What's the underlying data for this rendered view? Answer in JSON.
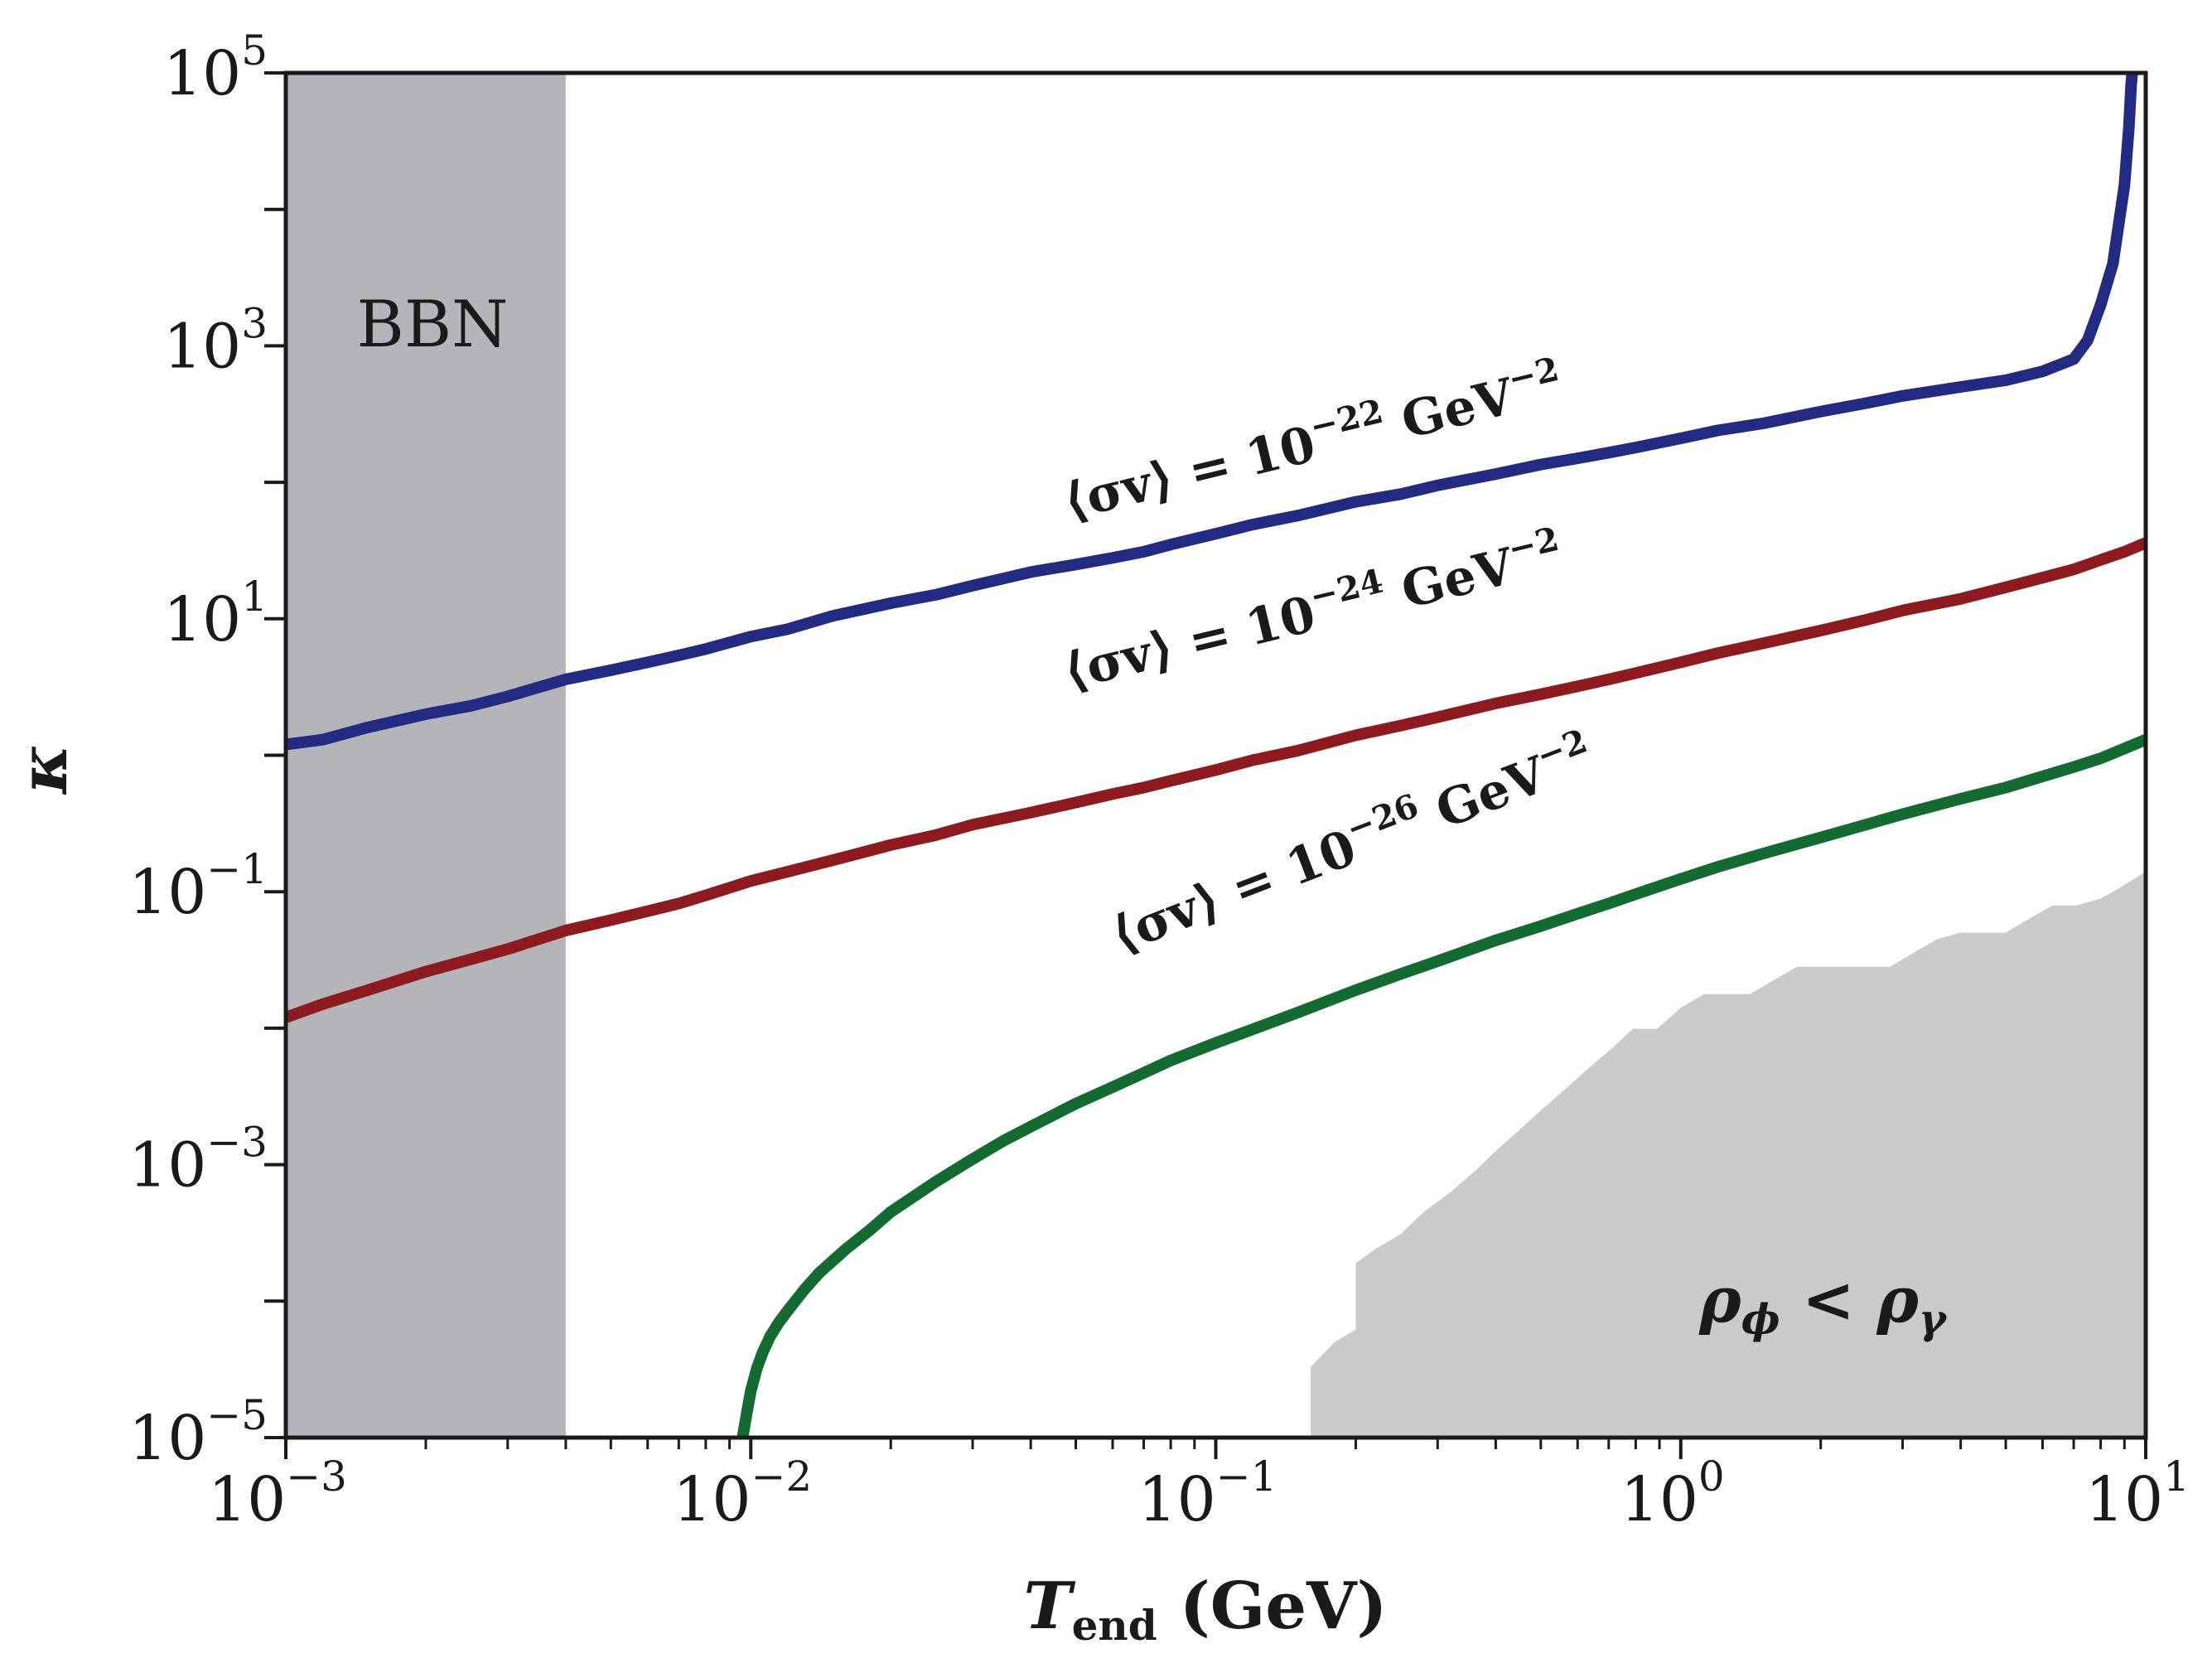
{
  "chart_data": {
    "type": "line",
    "xscale": "log",
    "yscale": "log",
    "xlim": [
      0.001,
      10
    ],
    "ylim": [
      1e-05,
      100000
    ],
    "x_ticks": [
      {
        "base": "10",
        "exp": "−3"
      },
      {
        "base": "10",
        "exp": "−2"
      },
      {
        "base": "10",
        "exp": "−1"
      },
      {
        "base": "10",
        "exp": "0"
      },
      {
        "base": "10",
        "exp": "1"
      }
    ],
    "y_ticks": [
      {
        "base": "10",
        "exp": "−5"
      },
      {
        "base": "10",
        "exp": "−3"
      },
      {
        "base": "10",
        "exp": "−1"
      },
      {
        "base": "10",
        "exp": "1"
      },
      {
        "base": "10",
        "exp": "3"
      },
      {
        "base": "10",
        "exp": "5"
      }
    ],
    "xlabel": {
      "sym": "T",
      "sub": "end",
      "rest": " (GeV)"
    },
    "ylabel": "κ",
    "colors": {
      "blue": "#232a82",
      "red": "#8c1a1f",
      "green": "#136b31",
      "bbn_band": "#b4b5b8",
      "rho_region": "#c9cacc",
      "axis": "#1a1a1a"
    },
    "regions": {
      "bbn": {
        "label": "BBN",
        "x_range": [
          0.001,
          0.004
        ]
      },
      "rho": {
        "label": {
          "a": "ρ",
          "a_sub": "ϕ",
          "op": " < ",
          "b": "ρ",
          "b_sub": "γ"
        },
        "boundary": [
          [
            0.16,
            1e-05
          ],
          [
            0.16,
            3.3e-05
          ],
          [
            0.18,
            5e-05
          ],
          [
            0.2,
            6.2e-05
          ],
          [
            0.2,
            0.00019
          ],
          [
            0.22,
            0.00024
          ],
          [
            0.25,
            0.00031
          ],
          [
            0.28,
            0.00045
          ],
          [
            0.32,
            0.00063
          ],
          [
            0.36,
            0.00089
          ],
          [
            0.4,
            0.00126
          ],
          [
            0.45,
            0.0018
          ],
          [
            0.5,
            0.0025
          ],
          [
            0.56,
            0.0035
          ],
          [
            0.63,
            0.005
          ],
          [
            0.71,
            0.0071
          ],
          [
            0.79,
            0.0099
          ],
          [
            0.89,
            0.0099
          ],
          [
            1.0,
            0.0141
          ],
          [
            1.12,
            0.0178
          ],
          [
            1.26,
            0.0178
          ],
          [
            1.41,
            0.0178
          ],
          [
            1.58,
            0.0224
          ],
          [
            1.78,
            0.0282
          ],
          [
            2.0,
            0.0282
          ],
          [
            2.24,
            0.0282
          ],
          [
            2.51,
            0.0282
          ],
          [
            2.82,
            0.0282
          ],
          [
            3.16,
            0.0355
          ],
          [
            3.55,
            0.0447
          ],
          [
            4.0,
            0.0501
          ],
          [
            4.5,
            0.0501
          ],
          [
            5.0,
            0.0501
          ],
          [
            5.6,
            0.0631
          ],
          [
            6.3,
            0.0794
          ],
          [
            7.1,
            0.0794
          ],
          [
            8.0,
            0.0891
          ],
          [
            9.0,
            0.112
          ],
          [
            10.0,
            0.141
          ],
          [
            10.0,
            1e-05
          ]
        ]
      }
    },
    "series": [
      {
        "name": "sigma_v_1e-22",
        "color_key": "blue",
        "label": {
          "pre": "⟨σv⟩ = 10",
          "exp": "−22",
          "post": " GeV",
          "unit_exp": "−2"
        },
        "x": [
          0.001,
          0.0012,
          0.0015,
          0.002,
          0.0025,
          0.003,
          0.004,
          0.005,
          0.006,
          0.007,
          0.008,
          0.01,
          0.012,
          0.015,
          0.02,
          0.025,
          0.03,
          0.04,
          0.05,
          0.06,
          0.07,
          0.08,
          0.1,
          0.12,
          0.15,
          0.2,
          0.25,
          0.3,
          0.4,
          0.5,
          0.6,
          0.7,
          0.8,
          1.0,
          1.2,
          1.5,
          2.0,
          2.5,
          3.0,
          4.0,
          5.0,
          6.0,
          7.0,
          7.5,
          8.0,
          8.5,
          9.0,
          9.2,
          9.3,
          9.35
        ],
        "y": [
          1.2,
          1.3,
          1.6,
          2.0,
          2.3,
          2.7,
          3.6,
          4.2,
          4.8,
          5.4,
          6.0,
          7.4,
          8.4,
          10.5,
          13.0,
          15.0,
          17.5,
          22.0,
          25.0,
          28.0,
          31.0,
          35.0,
          42.0,
          49.0,
          57.0,
          72.0,
          82.0,
          95.0,
          115.0,
          135.0,
          150.0,
          165.0,
          180.0,
          210.0,
          240.0,
          270.0,
          330.0,
          380.0,
          430.0,
          500.0,
          560.0,
          650.0,
          800.0,
          1100.0,
          2000.0,
          4000.0,
          15000.0,
          40000.0,
          80000.0,
          100000.0
        ]
      },
      {
        "name": "sigma_v_1e-24",
        "color_key": "red",
        "label": {
          "pre": "⟨σv⟩ = 10",
          "exp": "−24",
          "post": " GeV",
          "unit_exp": "−2"
        },
        "x": [
          0.001,
          0.0012,
          0.0015,
          0.002,
          0.0025,
          0.003,
          0.004,
          0.005,
          0.006,
          0.007,
          0.008,
          0.01,
          0.012,
          0.015,
          0.02,
          0.025,
          0.03,
          0.04,
          0.05,
          0.06,
          0.07,
          0.08,
          0.1,
          0.12,
          0.15,
          0.2,
          0.25,
          0.3,
          0.4,
          0.5,
          0.6,
          0.7,
          0.8,
          1.0,
          1.2,
          1.5,
          2.0,
          2.5,
          3.0,
          4.0,
          5.0,
          6.0,
          7.0,
          8.0,
          9.0,
          10.0
        ],
        "y": [
          0.012,
          0.015,
          0.019,
          0.026,
          0.032,
          0.038,
          0.052,
          0.062,
          0.072,
          0.082,
          0.094,
          0.12,
          0.14,
          0.17,
          0.22,
          0.26,
          0.31,
          0.38,
          0.45,
          0.52,
          0.58,
          0.65,
          0.78,
          0.92,
          1.08,
          1.4,
          1.65,
          1.9,
          2.4,
          2.8,
          3.2,
          3.6,
          4.0,
          4.8,
          5.6,
          6.6,
          8.2,
          9.8,
          11.5,
          14.0,
          17.0,
          20.0,
          23.0,
          27.0,
          31.0,
          36.0
        ]
      },
      {
        "name": "sigma_v_1e-26",
        "color_key": "green",
        "label": {
          "pre": "⟨σv⟩ = 10",
          "exp": "−26",
          "post": " GeV",
          "unit_exp": "−2"
        },
        "x": [
          0.0096,
          0.0098,
          0.01,
          0.0103,
          0.0106,
          0.011,
          0.0115,
          0.012,
          0.013,
          0.014,
          0.016,
          0.018,
          0.02,
          0.025,
          0.03,
          0.035,
          0.04,
          0.05,
          0.06,
          0.07,
          0.08,
          0.1,
          0.12,
          0.15,
          0.2,
          0.25,
          0.3,
          0.4,
          0.5,
          0.6,
          0.7,
          0.8,
          1.0,
          1.2,
          1.5,
          2.0,
          2.5,
          3.0,
          4.0,
          5.0,
          6.0,
          7.0,
          8.0,
          9.0,
          10.0
        ],
        "y": [
          1e-05,
          1.5e-05,
          2.2e-05,
          3.2e-05,
          4.2e-05,
          5.5e-05,
          7e-05,
          8.5e-05,
          0.00012,
          0.00016,
          0.00024,
          0.00033,
          0.00045,
          0.00075,
          0.0011,
          0.0015,
          0.0019,
          0.0028,
          0.0037,
          0.0047,
          0.0058,
          0.0078,
          0.0098,
          0.013,
          0.019,
          0.025,
          0.031,
          0.044,
          0.056,
          0.069,
          0.082,
          0.096,
          0.124,
          0.152,
          0.19,
          0.25,
          0.31,
          0.37,
          0.48,
          0.58,
          0.7,
          0.82,
          0.95,
          1.12,
          1.3
        ]
      }
    ]
  }
}
